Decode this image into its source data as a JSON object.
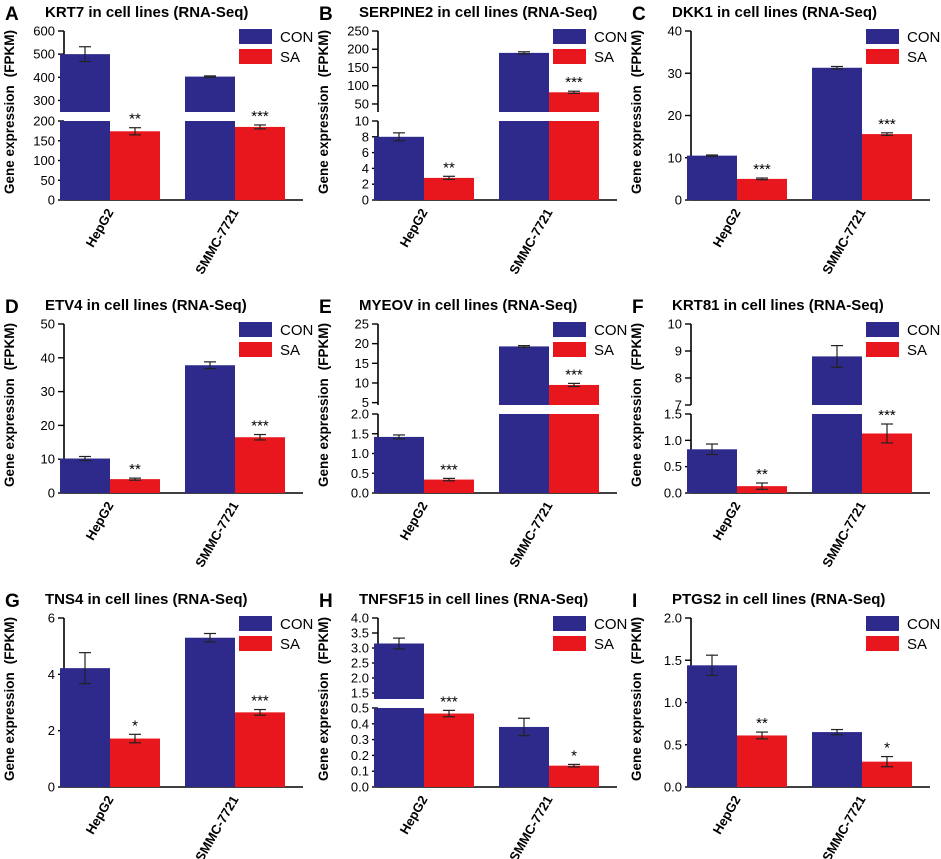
{
  "figure": {
    "colors": {
      "con": "#2E2A8C",
      "sa": "#E8171D",
      "axis": "#000000"
    },
    "legend_labels": [
      "CON",
      "SA"
    ],
    "ylabel_main": "Gene expression",
    "ylabel_unit": "(FPKM)"
  },
  "chart_data": [
    {
      "panel": "A",
      "type": "bar",
      "title": "KRT7 in cell lines (RNA-Seq)",
      "categories": [
        "HepG2",
        "SMMC-7721"
      ],
      "series": [
        {
          "name": "CON",
          "values": [
            500,
            403
          ],
          "errors": [
            32,
            3
          ]
        },
        {
          "name": "SA",
          "values": [
            174,
            185
          ],
          "errors": [
            9,
            5
          ]
        }
      ],
      "significance": [
        "**",
        "***"
      ],
      "ylabel": "Gene expression (FPKM)",
      "axis_break": true,
      "lower_segment": {
        "range": [
          0,
          200
        ],
        "ticks": [
          "0",
          "50",
          "100",
          "150",
          "200"
        ]
      },
      "upper_segment": {
        "range": [
          250,
          600
        ],
        "ticks": [
          "300",
          "400",
          "500",
          "600"
        ]
      },
      "legend_position": "top-right"
    },
    {
      "panel": "B",
      "type": "bar",
      "title": "SERPINE2 in cell lines (RNA-Seq)",
      "categories": [
        "HepG2",
        "SMMC-7721"
      ],
      "series": [
        {
          "name": "CON",
          "values": [
            8.0,
            190
          ],
          "errors": [
            0.5,
            3
          ]
        },
        {
          "name": "SA",
          "values": [
            2.8,
            82
          ],
          "errors": [
            0.2,
            3
          ]
        }
      ],
      "significance": [
        "**",
        "***"
      ],
      "ylabel": "Gene expression (FPKM)",
      "axis_break": true,
      "lower_segment": {
        "range": [
          0,
          10
        ],
        "ticks": [
          "0",
          "2",
          "4",
          "6",
          "8",
          "10"
        ]
      },
      "upper_segment": {
        "range": [
          28,
          250
        ],
        "ticks": [
          "50",
          "100",
          "150",
          "200",
          "250"
        ]
      },
      "legend_position": "top-right"
    },
    {
      "panel": "C",
      "type": "bar",
      "title": "DKK1 in cell lines (RNA-Seq)",
      "categories": [
        "HepG2",
        "SMMC-7721"
      ],
      "series": [
        {
          "name": "CON",
          "values": [
            10.5,
            31.3
          ],
          "errors": [
            0.15,
            0.3
          ]
        },
        {
          "name": "SA",
          "values": [
            5.0,
            15.6
          ],
          "errors": [
            0.2,
            0.3
          ]
        }
      ],
      "significance": [
        "***",
        "***"
      ],
      "ylabel": "Gene expression (FPKM)",
      "axis_break": false,
      "range": [
        0,
        40
      ],
      "ticks": [
        "0",
        "10",
        "20",
        "30",
        "40"
      ],
      "legend_position": "top-right"
    },
    {
      "panel": "D",
      "type": "bar",
      "title": "ETV4 in cell lines (RNA-Seq)",
      "categories": [
        "HepG2",
        "SMMC-7721"
      ],
      "series": [
        {
          "name": "CON",
          "values": [
            10.2,
            37.8
          ],
          "errors": [
            0.6,
            1.0
          ]
        },
        {
          "name": "SA",
          "values": [
            4.1,
            16.5
          ],
          "errors": [
            0.3,
            0.8
          ]
        }
      ],
      "significance": [
        "**",
        "***"
      ],
      "ylabel": "Gene expression (FPKM)",
      "axis_break": false,
      "range": [
        0,
        50
      ],
      "ticks": [
        "0",
        "10",
        "20",
        "30",
        "40",
        "50"
      ],
      "legend_position": "top-right"
    },
    {
      "panel": "E",
      "type": "bar",
      "title": "MYEOV in cell lines (RNA-Seq)",
      "categories": [
        "HepG2",
        "SMMC-7721"
      ],
      "series": [
        {
          "name": "CON",
          "values": [
            1.42,
            19.3
          ],
          "errors": [
            0.05,
            0.2
          ]
        },
        {
          "name": "SA",
          "values": [
            0.34,
            9.5
          ],
          "errors": [
            0.03,
            0.4
          ]
        }
      ],
      "significance": [
        "***",
        "***"
      ],
      "ylabel": "Gene expression (FPKM)",
      "axis_break": true,
      "lower_segment": {
        "range": [
          0,
          2.0
        ],
        "ticks": [
          "0.0",
          "0.5",
          "1.0",
          "1.5",
          "2.0"
        ]
      },
      "upper_segment": {
        "range": [
          4.4,
          25
        ],
        "ticks": [
          "5",
          "10",
          "15",
          "20",
          "25"
        ]
      },
      "legend_position": "top-right"
    },
    {
      "panel": "F",
      "type": "bar",
      "title": "KRT81 in cell lines (RNA-Seq)",
      "categories": [
        "HepG2",
        "SMMC-7721"
      ],
      "series": [
        {
          "name": "CON",
          "values": [
            0.83,
            8.8
          ],
          "errors": [
            0.1,
            0.4
          ]
        },
        {
          "name": "SA",
          "values": [
            0.13,
            1.13
          ],
          "errors": [
            0.06,
            0.18
          ]
        }
      ],
      "significance": [
        "**",
        "***"
      ],
      "ylabel": "Gene expression (FPKM)",
      "axis_break": true,
      "lower_segment": {
        "range": [
          0,
          1.5
        ],
        "ticks": [
          "0.0",
          "0.5",
          "1.0",
          "1.5"
        ]
      },
      "upper_segment": {
        "range": [
          7,
          10
        ],
        "ticks": [
          "7",
          "8",
          "9",
          "10"
        ]
      },
      "legend_position": "top-right"
    },
    {
      "panel": "G",
      "type": "bar",
      "title": "TNS4 in cell lines (RNA-Seq)",
      "categories": [
        "HepG2",
        "SMMC-7721"
      ],
      "series": [
        {
          "name": "CON",
          "values": [
            4.22,
            5.3
          ],
          "errors": [
            0.55,
            0.15
          ]
        },
        {
          "name": "SA",
          "values": [
            1.72,
            2.65
          ],
          "errors": [
            0.15,
            0.1
          ]
        }
      ],
      "significance": [
        "*",
        "***"
      ],
      "ylabel": "Gene expression (FPKM)",
      "axis_break": false,
      "range": [
        0,
        6
      ],
      "ticks": [
        "0",
        "2",
        "4",
        "6"
      ],
      "legend_position": "top-right"
    },
    {
      "panel": "H",
      "type": "bar",
      "title": "TNFSF15 in cell lines (RNA-Seq)",
      "categories": [
        "HepG2",
        "SMMC-7721"
      ],
      "series": [
        {
          "name": "CON",
          "values": [
            3.15,
            0.38
          ],
          "errors": [
            0.18,
            0.055
          ]
        },
        {
          "name": "SA",
          "values": [
            0.465,
            0.135
          ],
          "errors": [
            0.02,
            0.008
          ]
        }
      ],
      "significance": [
        "***",
        "*"
      ],
      "ylabel": "Gene expression (FPKM)",
      "axis_break": true,
      "lower_segment": {
        "range": [
          0,
          0.5
        ],
        "ticks": [
          "0.0",
          "0.1",
          "0.2",
          "0.3",
          "0.4",
          "0.5"
        ]
      },
      "upper_segment": {
        "range": [
          1.3,
          4.0
        ],
        "ticks": [
          "1.5",
          "2.0",
          "2.5",
          "3.0",
          "3.5",
          "4.0"
        ]
      },
      "legend_position": "top-right"
    },
    {
      "panel": "I",
      "type": "bar",
      "title": "PTGS2 in cell lines (RNA-Seq)",
      "categories": [
        "HepG2",
        "SMMC-7721"
      ],
      "series": [
        {
          "name": "CON",
          "values": [
            1.44,
            0.65
          ],
          "errors": [
            0.12,
            0.03
          ]
        },
        {
          "name": "SA",
          "values": [
            0.61,
            0.3
          ],
          "errors": [
            0.04,
            0.06
          ]
        }
      ],
      "significance": [
        "**",
        "*"
      ],
      "ylabel": "Gene expression (FPKM)",
      "axis_break": false,
      "range": [
        0,
        2.0
      ],
      "ticks": [
        "0.0",
        "0.5",
        "1.0",
        "1.5",
        "2.0"
      ],
      "legend_position": "top-right"
    }
  ]
}
